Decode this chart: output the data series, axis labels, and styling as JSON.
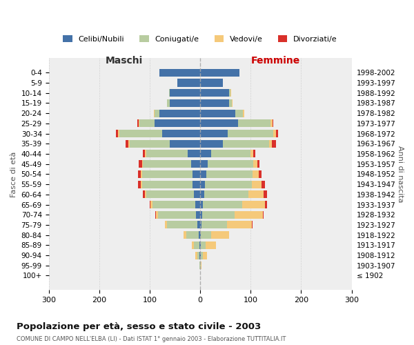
{
  "age_groups": [
    "100+",
    "95-99",
    "90-94",
    "85-89",
    "80-84",
    "75-79",
    "70-74",
    "65-69",
    "60-64",
    "55-59",
    "50-54",
    "45-49",
    "40-44",
    "35-39",
    "30-34",
    "25-29",
    "20-24",
    "15-19",
    "10-14",
    "5-9",
    "0-4"
  ],
  "birth_years": [
    "≤ 1902",
    "1903-1907",
    "1908-1912",
    "1913-1917",
    "1918-1922",
    "1923-1927",
    "1928-1932",
    "1933-1937",
    "1938-1942",
    "1943-1947",
    "1948-1952",
    "1953-1957",
    "1958-1962",
    "1963-1967",
    "1968-1972",
    "1973-1977",
    "1978-1982",
    "1983-1987",
    "1988-1992",
    "1993-1997",
    "1998-2002"
  ],
  "male_celibi": [
    0,
    0,
    1,
    2,
    3,
    5,
    8,
    10,
    12,
    15,
    15,
    18,
    25,
    60,
    75,
    90,
    80,
    60,
    60,
    45,
    80
  ],
  "male_coniugati": [
    0,
    1,
    5,
    10,
    25,
    60,
    75,
    85,
    95,
    100,
    100,
    95,
    82,
    80,
    85,
    30,
    10,
    5,
    2,
    0,
    0
  ],
  "male_vedovi": [
    0,
    1,
    3,
    5,
    5,
    5,
    5,
    3,
    2,
    2,
    2,
    2,
    2,
    2,
    2,
    2,
    1,
    0,
    0,
    0,
    0
  ],
  "male_divorziati": [
    0,
    0,
    0,
    0,
    0,
    0,
    1,
    2,
    5,
    6,
    6,
    7,
    5,
    6,
    5,
    2,
    1,
    0,
    0,
    0,
    0
  ],
  "female_nubili": [
    0,
    0,
    1,
    1,
    2,
    3,
    4,
    5,
    8,
    10,
    12,
    15,
    22,
    45,
    55,
    75,
    70,
    58,
    58,
    45,
    78
  ],
  "female_coniugate": [
    0,
    1,
    5,
    10,
    20,
    50,
    65,
    78,
    88,
    92,
    92,
    90,
    78,
    92,
    90,
    65,
    15,
    5,
    2,
    0,
    0
  ],
  "female_vedove": [
    0,
    2,
    8,
    20,
    35,
    50,
    55,
    45,
    30,
    20,
    12,
    8,
    5,
    5,
    5,
    3,
    2,
    1,
    1,
    0,
    0
  ],
  "female_divorziate": [
    0,
    0,
    0,
    0,
    0,
    1,
    2,
    5,
    7,
    7,
    5,
    5,
    4,
    8,
    5,
    2,
    1,
    0,
    0,
    0,
    0
  ],
  "colors": {
    "celibi": "#4472a8",
    "coniugati": "#b8cca0",
    "vedovi": "#f5c97a",
    "divorziati": "#d9302a"
  },
  "xlim": 300,
  "title": "Popolazione per età, sesso e stato civile - 2003",
  "subtitle": "COMUNE DI CAMPO NELL'ELBA (LI) - Dati ISTAT 1° gennaio 2003 - Elaborazione TUTTITALIA.IT",
  "ylabel_left": "Fasce di età",
  "ylabel_right": "Anni di nascita",
  "xlabel_left": "Maschi",
  "xlabel_right": "Femmine",
  "bg_color": "#ffffff",
  "grid_color": "#cccccc",
  "legend_labels": [
    "Celibi/Nubili",
    "Coniugati/e",
    "Vedovi/e",
    "Divorziati/e"
  ]
}
